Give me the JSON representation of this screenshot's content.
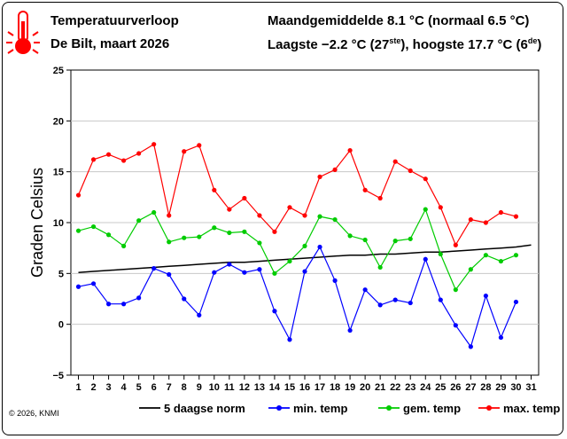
{
  "header": {
    "title": "Temperatuurverloop",
    "subtitle": "De Bilt, maart 2026",
    "monthly_mean": "Maandgemiddelde 8.1 °C (normaal 6.5 °C)",
    "extremes_prefix": "Laagste −2.2 °C (27",
    "extremes_sup1": "ste",
    "extremes_mid": "), hoogste 17.7 °C (6",
    "extremes_sup2": "de",
    "extremes_suffix": ")"
  },
  "copyright": "© 2026, KNMI",
  "colors": {
    "norm": "#000000",
    "min": "#0000ff",
    "mean": "#00cc00",
    "max": "#ff0000",
    "icon": "#ff0000"
  },
  "icon": "thermometer-hot-icon",
  "chart_data": {
    "type": "line",
    "ylabel": "Graden Celsius",
    "xlabel": "",
    "xlim": [
      1,
      31
    ],
    "ylim": [
      -5,
      25
    ],
    "yticks": [
      -5,
      0,
      5,
      10,
      15,
      20,
      25
    ],
    "x": [
      1,
      2,
      3,
      4,
      5,
      6,
      7,
      8,
      9,
      10,
      11,
      12,
      13,
      14,
      15,
      16,
      17,
      18,
      19,
      20,
      21,
      22,
      23,
      24,
      25,
      26,
      27,
      28,
      29,
      30,
      31
    ],
    "grid": true,
    "legend_position": "bottom",
    "series": [
      {
        "name": "5 daagse norm",
        "key": "norm",
        "markers": false,
        "x": [
          1,
          2,
          3,
          4,
          5,
          6,
          7,
          8,
          9,
          10,
          11,
          12,
          13,
          14,
          15,
          16,
          17,
          18,
          19,
          20,
          21,
          22,
          23,
          24,
          25,
          26,
          27,
          28,
          29,
          30,
          31
        ],
        "values": [
          5.1,
          5.2,
          5.3,
          5.4,
          5.5,
          5.6,
          5.7,
          5.8,
          5.9,
          6.0,
          6.1,
          6.1,
          6.2,
          6.3,
          6.4,
          6.5,
          6.6,
          6.7,
          6.8,
          6.8,
          6.9,
          6.9,
          7.0,
          7.1,
          7.1,
          7.2,
          7.3,
          7.4,
          7.5,
          7.6,
          7.8
        ]
      },
      {
        "name": "min. temp",
        "key": "min",
        "markers": true,
        "x": [
          1,
          2,
          3,
          4,
          5,
          6,
          7,
          8,
          9,
          10,
          11,
          12,
          13,
          14,
          15,
          16,
          17,
          18,
          19,
          20,
          21,
          22,
          23,
          24,
          25,
          26,
          27,
          28,
          29,
          30
        ],
        "values": [
          3.7,
          4.0,
          2.0,
          2.0,
          2.6,
          5.5,
          4.9,
          2.5,
          0.9,
          5.1,
          5.9,
          5.1,
          5.4,
          1.3,
          -1.5,
          5.2,
          7.6,
          4.3,
          -0.6,
          3.4,
          1.9,
          2.4,
          2.1,
          6.4,
          2.4,
          -0.1,
          -2.2,
          2.8,
          -1.3,
          2.2
        ]
      },
      {
        "name": "gem. temp",
        "key": "mean",
        "markers": true,
        "x": [
          1,
          2,
          3,
          4,
          5,
          6,
          7,
          8,
          9,
          10,
          11,
          12,
          13,
          14,
          15,
          16,
          17,
          18,
          19,
          20,
          21,
          22,
          23,
          24,
          25,
          26,
          27,
          28,
          29,
          30
        ],
        "values": [
          9.2,
          9.6,
          8.8,
          7.7,
          10.2,
          11.0,
          8.1,
          8.5,
          8.6,
          9.5,
          9.0,
          9.1,
          8.0,
          5.0,
          6.2,
          7.7,
          10.6,
          10.3,
          8.7,
          8.3,
          5.6,
          8.2,
          8.4,
          11.3,
          6.9,
          3.4,
          5.4,
          6.8,
          6.2,
          6.8
        ]
      },
      {
        "name": "max. temp",
        "key": "max",
        "markers": true,
        "x": [
          1,
          2,
          3,
          4,
          5,
          6,
          7,
          8,
          9,
          10,
          11,
          12,
          13,
          14,
          15,
          16,
          17,
          18,
          19,
          20,
          21,
          22,
          23,
          24,
          25,
          26,
          27,
          28,
          29,
          30
        ],
        "values": [
          12.7,
          16.2,
          16.7,
          16.1,
          16.8,
          17.7,
          10.7,
          17.0,
          17.6,
          13.2,
          11.3,
          12.4,
          10.7,
          9.1,
          11.5,
          10.7,
          14.5,
          15.2,
          17.1,
          13.2,
          12.4,
          16.0,
          15.1,
          14.3,
          11.5,
          7.8,
          10.3,
          10.0,
          11.0,
          10.6
        ]
      }
    ]
  }
}
